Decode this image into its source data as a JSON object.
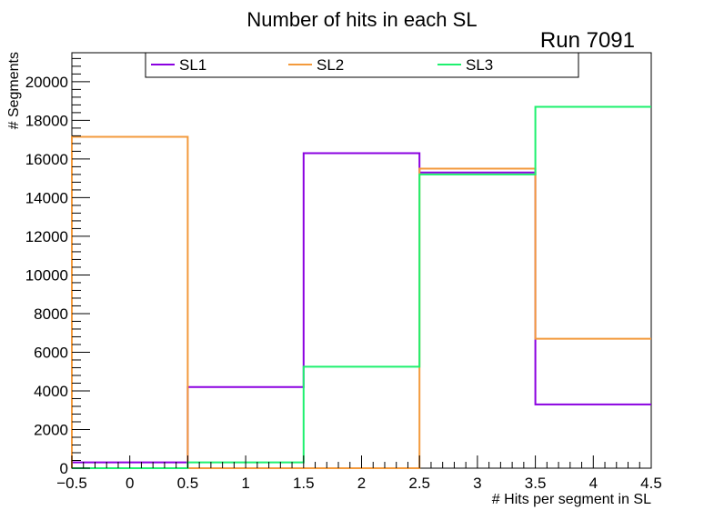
{
  "chart_data": {
    "type": "histogram-step",
    "title": "Number of hits in each SL",
    "run_label": "Run 7091",
    "xlabel": "# Hits per segment in SL",
    "ylabel": "# Segments",
    "xlim": [
      -0.5,
      4.5
    ],
    "ylim": [
      0,
      21500
    ],
    "x_ticks": [
      -0.5,
      0,
      0.5,
      1,
      1.5,
      2,
      2.5,
      3,
      3.5,
      4,
      4.5
    ],
    "x_tick_labels": [
      "−0.5",
      "0",
      "0.5",
      "1",
      "1.5",
      "2",
      "2.5",
      "3",
      "3.5",
      "4",
      "4.5"
    ],
    "y_ticks": [
      0,
      2000,
      4000,
      6000,
      8000,
      10000,
      12000,
      14000,
      16000,
      18000,
      20000
    ],
    "y_tick_labels": [
      "0",
      "2000",
      "4000",
      "6000",
      "8000",
      "10000",
      "12000",
      "14000",
      "16000",
      "18000",
      "20000"
    ],
    "bin_edges": [
      -0.5,
      0.5,
      1.5,
      2.5,
      3.5,
      4.5
    ],
    "series": [
      {
        "name": "SL1",
        "color": "#8a00e0",
        "values": [
          300,
          4200,
          16300,
          15300,
          3300
        ]
      },
      {
        "name": "SL2",
        "color": "#f39a3c",
        "values": [
          17150,
          0,
          0,
          15500,
          6700
        ]
      },
      {
        "name": "SL3",
        "color": "#1ef06e",
        "values": [
          0,
          300,
          5250,
          15200,
          18700
        ]
      }
    ],
    "legend_position": "top"
  }
}
